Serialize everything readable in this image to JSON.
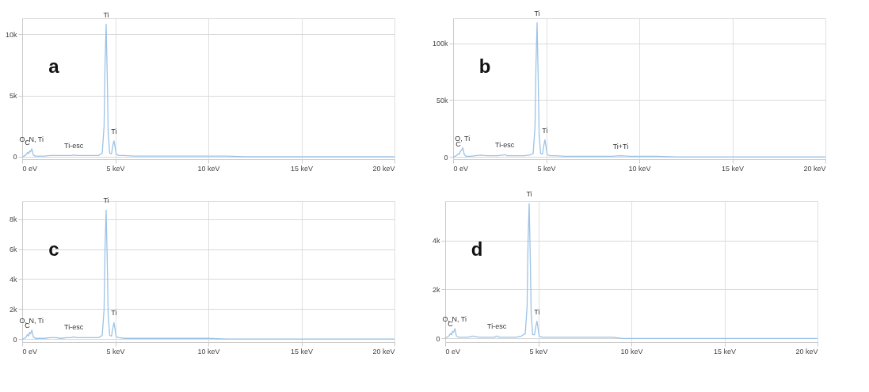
{
  "chart_data": [
    {
      "type": "line",
      "annotations": [
        "a",
        {
          "text": "C",
          "x": 0.28,
          "y": 350
        },
        {
          "text": "O, N, Ti",
          "x": 0.5,
          "y": 650
        },
        {
          "text": "Ti-esc",
          "x": 2.77,
          "y": 150
        },
        {
          "text": "Ti",
          "x": 4.51,
          "y": 10800
        },
        {
          "text": "Ti",
          "x": 4.93,
          "y": 1300
        }
      ],
      "x": [
        0,
        0.1,
        0.2,
        0.28,
        0.35,
        0.39,
        0.45,
        0.52,
        0.6,
        0.7,
        0.9,
        1.2,
        1.5,
        1.8,
        2.1,
        2.4,
        2.65,
        2.77,
        2.9,
        3.2,
        3.5,
        3.8,
        4.1,
        4.3,
        4.4,
        4.45,
        4.51,
        4.57,
        4.62,
        4.7,
        4.8,
        4.87,
        4.93,
        4.99,
        5.05,
        5.2,
        5.5,
        6,
        6.5,
        7,
        7.5,
        8,
        8.5,
        9.0,
        9.5,
        10,
        11,
        12,
        13,
        14,
        15,
        16,
        17,
        18,
        19,
        20
      ],
      "series": [
        {
          "color": "#9cc3e6",
          "values": [
            0,
            50,
            150,
            350,
            250,
            450,
            400,
            650,
            150,
            50,
            50,
            50,
            100,
            100,
            100,
            100,
            100,
            150,
            100,
            100,
            100,
            100,
            100,
            300,
            2500,
            7500,
            10800,
            6500,
            2000,
            300,
            250,
            900,
            1300,
            800,
            200,
            100,
            100,
            50,
            50,
            50,
            50,
            50,
            50,
            50,
            50,
            50,
            50,
            0,
            0,
            0,
            0,
            0,
            0,
            0,
            0,
            0
          ]
        }
      ],
      "xlim": [
        0,
        20
      ],
      "xticks": [
        {
          "value": 0,
          "label": "0 eV"
        },
        {
          "value": 5,
          "label": "5 keV"
        },
        {
          "value": 10,
          "label": "10 keV"
        },
        {
          "value": 15,
          "label": "15 keV"
        },
        {
          "value": 20,
          "label": "20 keV"
        }
      ],
      "ylim": [
        -200,
        11300
      ],
      "yticks": [
        0,
        {
          "value": 5000,
          "label": "5k"
        },
        {
          "value": 10000,
          "label": "10k"
        }
      ],
      "grid": true,
      "marker": "none",
      "line_style": "solid"
    },
    {
      "type": "line",
      "annotations": [
        "b",
        {
          "text": "C",
          "x": 0.28,
          "y": 3000
        },
        {
          "text": "O, Ti",
          "x": 0.5,
          "y": 8000
        },
        {
          "text": "Ti-esc",
          "x": 2.77,
          "y": 2000
        },
        {
          "text": "Ti",
          "x": 4.51,
          "y": 118000
        },
        {
          "text": "Ti",
          "x": 4.93,
          "y": 15000
        },
        {
          "text": "Ti+Ti",
          "x": 9.0,
          "y": 1000
        }
      ],
      "x": [
        0,
        0.1,
        0.2,
        0.28,
        0.35,
        0.39,
        0.45,
        0.52,
        0.6,
        0.7,
        0.9,
        1.2,
        1.5,
        1.8,
        2.1,
        2.4,
        2.65,
        2.77,
        2.9,
        3.2,
        3.5,
        3.8,
        4.1,
        4.3,
        4.4,
        4.45,
        4.51,
        4.57,
        4.62,
        4.7,
        4.8,
        4.87,
        4.93,
        4.99,
        5.05,
        5.2,
        5.5,
        6,
        6.5,
        7,
        7.5,
        8,
        8.5,
        9.0,
        9.5,
        10,
        11,
        12,
        13,
        14,
        15,
        16,
        17,
        18,
        19,
        20
      ],
      "series": [
        {
          "color": "#9cc3e6",
          "values": [
            0,
            500,
            1500,
            3000,
            2500,
            5000,
            6000,
            8000,
            2000,
            500,
            500,
            1000,
            1500,
            1000,
            1000,
            1000,
            1500,
            2000,
            1000,
            1000,
            1000,
            1000,
            1500,
            3000,
            27000,
            80000,
            118000,
            70000,
            20000,
            3000,
            2500,
            10000,
            15000,
            9000,
            2000,
            1000,
            1000,
            500,
            500,
            500,
            500,
            500,
            500,
            1000,
            500,
            500,
            500,
            0,
            0,
            0,
            0,
            0,
            0,
            0,
            0,
            0
          ]
        }
      ],
      "xlim": [
        0,
        20
      ],
      "xticks": [
        {
          "value": 0,
          "label": "0 eV"
        },
        {
          "value": 5,
          "label": "5 keV"
        },
        {
          "value": 10,
          "label": "10 keV"
        },
        {
          "value": 15,
          "label": "15 keV"
        },
        {
          "value": 20,
          "label": "20 keV"
        }
      ],
      "ylim": [
        -2000,
        122000
      ],
      "yticks": [
        0,
        {
          "value": 50000,
          "label": "50k"
        },
        {
          "value": 100000,
          "label": "100k"
        }
      ],
      "grid": true,
      "marker": "none",
      "line_style": "solid"
    },
    {
      "type": "line",
      "annotations": [
        "c",
        {
          "text": "C",
          "x": 0.28,
          "y": 300
        },
        {
          "text": "O, N, Ti",
          "x": 0.5,
          "y": 600
        },
        {
          "text": "Ti-esc",
          "x": 2.77,
          "y": 150
        },
        {
          "text": "Ti",
          "x": 4.51,
          "y": 8600
        },
        {
          "text": "Ti",
          "x": 4.93,
          "y": 1100
        }
      ],
      "x": [
        0,
        0.1,
        0.2,
        0.28,
        0.35,
        0.39,
        0.45,
        0.52,
        0.6,
        0.7,
        0.9,
        1.2,
        1.5,
        1.8,
        2.1,
        2.4,
        2.65,
        2.77,
        2.9,
        3.2,
        3.5,
        3.8,
        4.1,
        4.3,
        4.4,
        4.45,
        4.51,
        4.57,
        4.62,
        4.7,
        4.8,
        4.87,
        4.93,
        4.99,
        5.05,
        5.2,
        5.5,
        6,
        6.5,
        7,
        7.5,
        8,
        8.5,
        9.0,
        9.5,
        10,
        11,
        12,
        13,
        14,
        15,
        16,
        17,
        18,
        19,
        20
      ],
      "series": [
        {
          "color": "#9cc3e6",
          "values": [
            0,
            50,
            100,
            300,
            200,
            450,
            350,
            600,
            150,
            50,
            50,
            50,
            100,
            100,
            50,
            100,
            100,
            150,
            100,
            100,
            100,
            100,
            100,
            250,
            2000,
            6000,
            8600,
            5200,
            1600,
            250,
            200,
            750,
            1100,
            650,
            150,
            100,
            50,
            50,
            50,
            50,
            50,
            50,
            50,
            50,
            50,
            50,
            0,
            0,
            0,
            0,
            0,
            0,
            0,
            0,
            0,
            0
          ]
        }
      ],
      "xlim": [
        0,
        20
      ],
      "xticks": [
        {
          "value": 0,
          "label": "0 eV"
        },
        {
          "value": 5,
          "label": "5 keV"
        },
        {
          "value": 10,
          "label": "10 keV"
        },
        {
          "value": 15,
          "label": "15 keV"
        },
        {
          "value": 20,
          "label": "20 keV"
        }
      ],
      "ylim": [
        -200,
        9200
      ],
      "yticks": [
        0,
        {
          "value": 2000,
          "label": "2k"
        },
        {
          "value": 4000,
          "label": "4k"
        },
        {
          "value": 6000,
          "label": "6k"
        },
        {
          "value": 8000,
          "label": "8k"
        }
      ],
      "grid": true,
      "marker": "none",
      "line_style": "solid"
    },
    {
      "type": "line",
      "annotations": [
        "d",
        {
          "text": "C",
          "x": 0.28,
          "y": 200
        },
        {
          "text": "O, N, Ti",
          "x": 0.5,
          "y": 400
        },
        {
          "text": "Ti-esc",
          "x": 2.77,
          "y": 100
        },
        {
          "text": "Ti",
          "x": 4.51,
          "y": 5500
        },
        {
          "text": "Ti",
          "x": 4.93,
          "y": 700
        }
      ],
      "x": [
        0,
        0.1,
        0.2,
        0.28,
        0.35,
        0.39,
        0.45,
        0.52,
        0.6,
        0.7,
        0.9,
        1.2,
        1.5,
        1.8,
        2.1,
        2.4,
        2.65,
        2.77,
        2.9,
        3.2,
        3.5,
        3.8,
        4.1,
        4.3,
        4.4,
        4.45,
        4.51,
        4.57,
        4.62,
        4.7,
        4.8,
        4.87,
        4.93,
        4.99,
        5.05,
        5.2,
        5.5,
        6,
        6.5,
        7,
        7.5,
        8,
        8.5,
        9.0,
        9.5,
        10,
        11,
        12,
        13,
        14,
        15,
        16,
        17,
        18,
        19,
        20
      ],
      "series": [
        {
          "color": "#9cc3e6",
          "values": [
            0,
            50,
            100,
            200,
            150,
            300,
            250,
            400,
            100,
            50,
            50,
            50,
            100,
            50,
            50,
            50,
            50,
            100,
            50,
            50,
            50,
            50,
            100,
            200,
            1300,
            3900,
            5500,
            3300,
            1000,
            150,
            150,
            500,
            700,
            400,
            100,
            50,
            50,
            50,
            50,
            50,
            50,
            50,
            50,
            50,
            0,
            0,
            0,
            0,
            0,
            0,
            0,
            0,
            0,
            0,
            0,
            0
          ]
        }
      ],
      "xlim": [
        0,
        20
      ],
      "xticks": [
        {
          "value": 0,
          "label": "0 eV"
        },
        {
          "value": 5,
          "label": "5 keV"
        },
        {
          "value": 10,
          "label": "10 keV"
        },
        {
          "value": 15,
          "label": "15 keV"
        },
        {
          "value": 20,
          "label": "20 keV"
        }
      ],
      "ylim": [
        -150,
        5600
      ],
      "yticks": [
        0,
        {
          "value": 2000,
          "label": "2k"
        },
        {
          "value": 4000,
          "label": "4k"
        }
      ],
      "grid": true,
      "marker": "none",
      "line_style": "solid"
    }
  ]
}
